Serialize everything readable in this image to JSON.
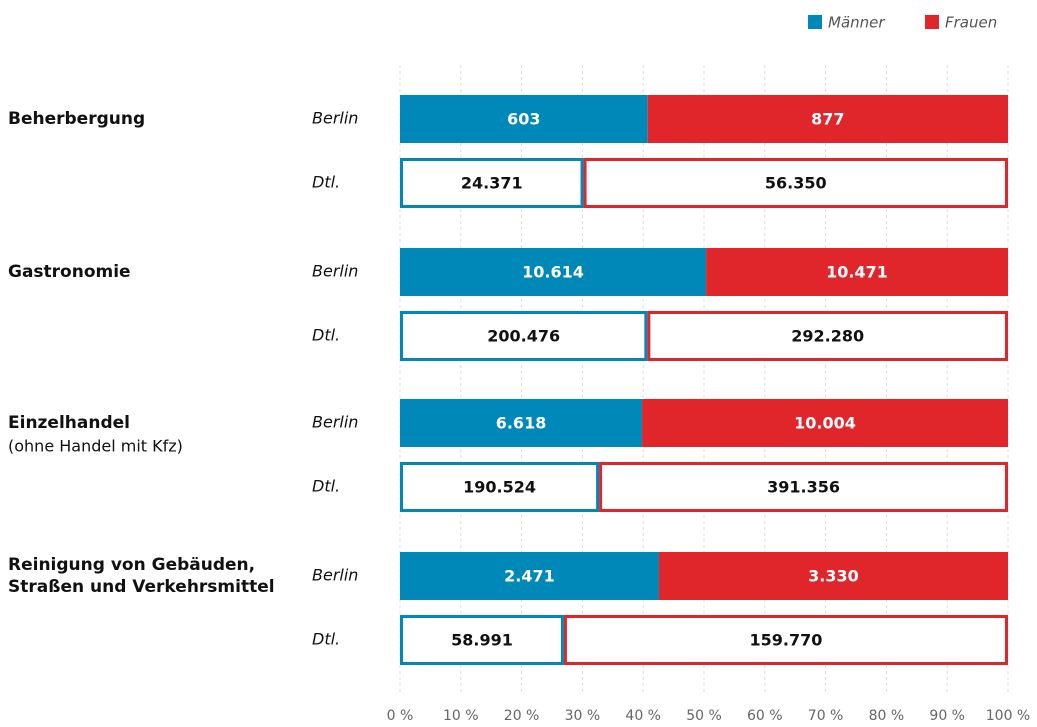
{
  "chart_data": {
    "type": "stacked-bar-100",
    "legend": "top-right",
    "grid": true,
    "categories": [
      {
        "label": [
          "Beherbergung"
        ]
      },
      {
        "label": [
          "Gastronomie"
        ]
      },
      {
        "label": [
          "Einzelhandel"
        ],
        "note": "(ohne Handel mit Kfz)"
      },
      {
        "label": [
          "Reinigung von Gebäuden,",
          "Straßen und Verkehrsmittel"
        ]
      }
    ],
    "regions": [
      "Berlin",
      "Dtl."
    ],
    "series": [
      {
        "name": "Männer",
        "color": "#0088b8",
        "values": [
          [
            603,
            24371
          ],
          [
            10614,
            200476
          ],
          [
            6618,
            190524
          ],
          [
            2471,
            58991
          ]
        ],
        "value_labels": [
          [
            "603",
            "24.371"
          ],
          [
            "10.614",
            "200.476"
          ],
          [
            "6.618",
            "190.524"
          ],
          [
            "2.471",
            "58.991"
          ]
        ]
      },
      {
        "name": "Frauen",
        "color": "#e0262a",
        "values": [
          [
            877,
            56350
          ],
          [
            10471,
            292280
          ],
          [
            10004,
            391356
          ],
          [
            3330,
            159770
          ]
        ],
        "value_labels": [
          [
            "877",
            "56.350"
          ],
          [
            "10.471",
            "292.280"
          ],
          [
            "10.004",
            "391.356"
          ],
          [
            "3.330",
            "159.770"
          ]
        ]
      }
    ],
    "xlim": [
      0,
      100
    ],
    "xticks": [
      {
        "value": 0,
        "label": "0 %"
      },
      {
        "value": 10,
        "label": "10 %"
      },
      {
        "value": 20,
        "label": "20 %"
      },
      {
        "value": 30,
        "label": "30 %"
      },
      {
        "value": 40,
        "label": "40 %"
      },
      {
        "value": 50,
        "label": "50 %"
      },
      {
        "value": 60,
        "label": "60 %"
      },
      {
        "value": 70,
        "label": "70 %"
      },
      {
        "value": 80,
        "label": "80 %"
      },
      {
        "value": 90,
        "label": "90 %"
      },
      {
        "value": 100,
        "label": "100 %"
      }
    ]
  }
}
